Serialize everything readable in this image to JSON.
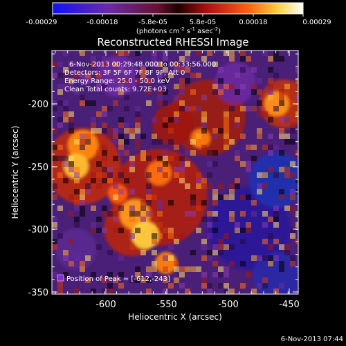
{
  "colorbar": {
    "tick_labels": [
      "-0.00029",
      "-0.00018",
      "-5.8e-05",
      "5.8e-05",
      "0.00018",
      "0.00029"
    ],
    "unit_label": "(photons cm",
    "unit_exp1": "-2",
    "unit_mid": " s",
    "unit_exp2": "-1",
    "unit_end": " asec",
    "unit_exp3": "-2",
    "unit_close": ")"
  },
  "plot": {
    "title": "Reconstructed RHESSI Image",
    "info_lines": [
      "6-Nov-2013 00:29:48.000 to 00:33:56.000",
      "Detectors: 3F 5F 6F 7F 8F 9F, Att 0",
      "Energy Range: 25.0 - 50.0 keV",
      "Clean     Total counts: 9.72E+03"
    ],
    "peak_label": "Position of Peak = [-612,-243]",
    "xlabel": "Heliocentric X (arcsec)",
    "ylabel": "Heliocentric Y (arcsec)",
    "x_ticks": [
      "-600",
      "-550",
      "-500",
      "-450"
    ],
    "y_ticks": [
      "-200",
      "-250",
      "-300",
      "-350"
    ],
    "xlim": [
      -645,
      -450
    ],
    "ylim": [
      -355,
      -180
    ]
  },
  "footer": {
    "timestamp": "6-Nov-2013 07:44"
  }
}
